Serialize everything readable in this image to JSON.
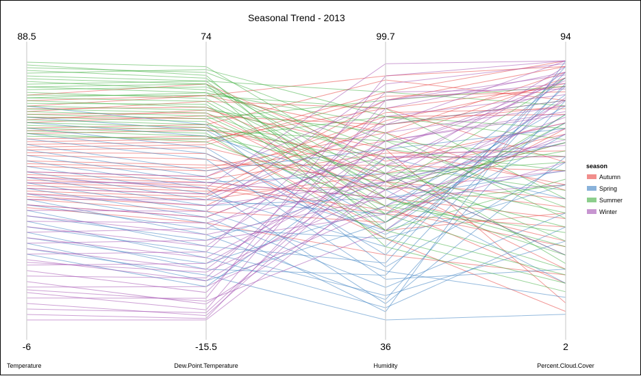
{
  "chart_data": {
    "type": "parallel-coordinates",
    "title": "Seasonal Trend - 2013",
    "axes": [
      {
        "name": "Temperature",
        "max": 88.5,
        "min": -6,
        "max_label": "88.5",
        "min_label": "-6"
      },
      {
        "name": "Dew.Point.Temperature",
        "max": 74,
        "min": -15.5,
        "max_label": "74",
        "min_label": "-15.5"
      },
      {
        "name": "Humidity",
        "max": 99.7,
        "min": 36,
        "max_label": "99.7",
        "min_label": "36"
      },
      {
        "name": "Percent.Cloud.Cover",
        "max": 94,
        "min": 2,
        "max_label": "94",
        "min_label": "2"
      }
    ],
    "legend": {
      "title": "season",
      "placement": "right",
      "entries": [
        {
          "label": "Autumn",
          "color": "#e8423f"
        },
        {
          "label": "Spring",
          "color": "#3a7fc1"
        },
        {
          "label": "Summer",
          "color": "#3fae3f"
        },
        {
          "label": "Winter",
          "color": "#a24fb0"
        }
      ]
    },
    "series": [
      {
        "name": "Autumn",
        "records": [
          [
            74,
            62,
            82,
            90
          ],
          [
            70,
            60,
            88,
            85
          ],
          [
            66,
            55,
            84,
            78
          ],
          [
            62,
            50,
            76,
            60
          ],
          [
            58,
            46,
            92,
            94
          ],
          [
            54,
            40,
            70,
            45
          ],
          [
            50,
            36,
            80,
            88
          ],
          [
            46,
            32,
            66,
            30
          ],
          [
            42,
            28,
            90,
            92
          ],
          [
            40,
            26,
            72,
            25
          ],
          [
            38,
            22,
            60,
            70
          ],
          [
            71,
            58,
            70,
            20
          ],
          [
            68,
            54,
            64,
            15
          ],
          [
            64,
            52,
            95,
            80
          ],
          [
            60,
            48,
            58,
            40
          ],
          [
            56,
            44,
            68,
            65
          ],
          [
            52,
            38,
            74,
            55
          ],
          [
            48,
            34,
            86,
            75
          ],
          [
            44,
            30,
            62,
            35
          ],
          [
            36,
            20,
            78,
            50
          ],
          [
            72,
            62,
            96,
            92
          ],
          [
            67,
            57,
            78,
            8
          ],
          [
            63,
            51,
            72,
            68
          ],
          [
            59,
            47,
            88,
            58
          ],
          [
            55,
            42,
            56,
            5
          ],
          [
            51,
            37,
            82,
            48
          ],
          [
            47,
            33,
            77,
            62
          ],
          [
            43,
            29,
            69,
            42
          ],
          [
            39,
            24,
            85,
            86
          ],
          [
            35,
            18,
            52,
            18
          ],
          [
            76,
            66,
            75,
            72
          ],
          [
            69,
            56,
            66,
            38
          ],
          [
            57,
            45,
            91,
            83
          ],
          [
            45,
            31,
            63,
            28
          ],
          [
            41,
            27,
            87,
            77
          ]
        ]
      },
      {
        "name": "Spring",
        "records": [
          [
            68,
            50,
            60,
            82
          ],
          [
            64,
            44,
            52,
            90
          ],
          [
            60,
            40,
            46,
            20
          ],
          [
            56,
            34,
            58,
            75
          ],
          [
            52,
            30,
            40,
            60
          ],
          [
            48,
            26,
            62,
            88
          ],
          [
            44,
            22,
            48,
            10
          ],
          [
            40,
            18,
            38,
            94
          ],
          [
            36,
            16,
            56,
            50
          ],
          [
            32,
            12,
            70,
            65
          ],
          [
            28,
            8,
            42,
            30
          ],
          [
            24,
            4,
            64,
            78
          ],
          [
            20,
            0,
            36,
            4
          ],
          [
            58,
            36,
            78,
            70
          ],
          [
            50,
            28,
            54,
            85
          ],
          [
            42,
            20,
            44,
            40
          ],
          [
            34,
            10,
            50,
            92
          ],
          [
            46,
            24,
            66,
            55
          ],
          [
            54,
            32,
            72,
            25
          ],
          [
            62,
            42,
            57,
            68
          ],
          [
            38,
            14,
            41,
            80
          ],
          [
            30,
            6,
            39,
            35
          ],
          [
            26,
            2,
            47,
            86
          ],
          [
            66,
            48,
            68,
            15
          ],
          [
            72,
            52,
            49,
            58
          ],
          [
            22,
            -2,
            60,
            72
          ],
          [
            18,
            -4,
            76,
            45
          ]
        ]
      },
      {
        "name": "Summer",
        "records": [
          [
            88,
            72,
            72,
            40
          ],
          [
            86,
            70,
            80,
            60
          ],
          [
            85,
            68,
            66,
            25
          ],
          [
            84,
            71,
            86,
            70
          ],
          [
            82,
            66,
            70,
            35
          ],
          [
            81,
            64,
            78,
            55
          ],
          [
            80,
            67,
            62,
            20
          ],
          [
            79,
            63,
            84,
            80
          ],
          [
            78,
            65,
            74,
            30
          ],
          [
            77,
            61,
            68,
            65
          ],
          [
            76,
            62,
            88,
            45
          ],
          [
            75,
            60,
            64,
            50
          ],
          [
            74,
            58,
            76,
            22
          ],
          [
            73,
            59,
            60,
            75
          ],
          [
            72,
            57,
            82,
            38
          ],
          [
            71,
            56,
            70,
            62
          ],
          [
            70,
            55,
            66,
            28
          ],
          [
            69,
            54,
            90,
            85
          ],
          [
            68,
            53,
            58,
            18
          ],
          [
            67,
            52,
            74,
            48
          ],
          [
            66,
            51,
            62,
            72
          ],
          [
            65,
            50,
            80,
            42
          ],
          [
            64,
            49,
            56,
            15
          ],
          [
            63,
            48,
            72,
            58
          ],
          [
            62,
            46,
            64,
            33
          ],
          [
            61,
            47,
            86,
            66
          ],
          [
            87,
            69,
            58,
            52
          ],
          [
            83,
            67,
            92,
            78
          ],
          [
            79,
            66,
            54,
            12
          ],
          [
            75,
            63,
            68,
            88
          ]
        ]
      },
      {
        "name": "Winter",
        "records": [
          [
            40,
            24,
            70,
            90
          ],
          [
            36,
            20,
            78,
            85
          ],
          [
            32,
            14,
            66,
            80
          ],
          [
            28,
            10,
            84,
            94
          ],
          [
            24,
            6,
            74,
            88
          ],
          [
            20,
            2,
            80,
            75
          ],
          [
            16,
            -2,
            72,
            92
          ],
          [
            12,
            -6,
            86,
            82
          ],
          [
            8,
            -10,
            68,
            70
          ],
          [
            4,
            -12,
            90,
            86
          ],
          [
            0,
            -14,
            76,
            60
          ],
          [
            -4,
            -15,
            82,
            78
          ],
          [
            2,
            -8,
            96,
            94
          ],
          [
            6,
            -4,
            64,
            68
          ],
          [
            10,
            -1,
            88,
            90
          ],
          [
            14,
            4,
            74,
            72
          ],
          [
            18,
            8,
            92,
            84
          ],
          [
            22,
            12,
            62,
            58
          ],
          [
            26,
            16,
            80,
            76
          ],
          [
            30,
            18,
            70,
            66
          ],
          [
            34,
            22,
            94,
            93
          ],
          [
            38,
            26,
            84,
            80
          ],
          [
            42,
            28,
            76,
            64
          ],
          [
            -2,
            -13,
            78,
            87
          ],
          [
            46,
            30,
            99,
            94
          ],
          [
            44,
            32,
            66,
            50
          ],
          [
            48,
            34,
            90,
            89
          ],
          [
            -6,
            -15.5,
            70,
            74
          ],
          [
            5,
            -9,
            58,
            81
          ],
          [
            15,
            1,
            68,
            55
          ]
        ]
      }
    ]
  }
}
